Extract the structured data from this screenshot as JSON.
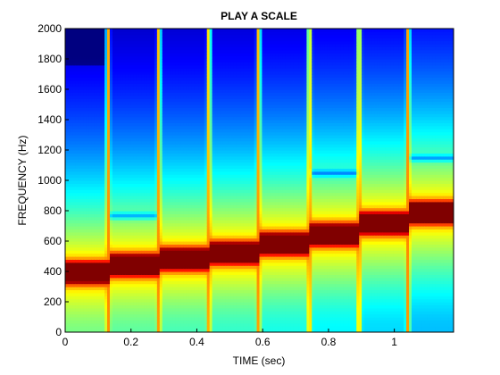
{
  "chart_data": {
    "type": "heatmap",
    "title": "PLAY A SCALE",
    "xlabel": "TIME (sec)",
    "ylabel": "FREQUENCY (Hz)",
    "xlim": [
      0,
      1.18
    ],
    "ylim": [
      0,
      2000
    ],
    "xticks": [
      0,
      0.2,
      0.4,
      0.6,
      0.8,
      1
    ],
    "yticks": [
      0,
      200,
      400,
      600,
      800,
      1000,
      1200,
      1400,
      1600,
      1800,
      2000
    ],
    "colormap": "jet",
    "colors": {
      "low": "#00008f",
      "mid": "#00ffff",
      "high": "#800000"
    },
    "notes_segments": [
      {
        "t_start": 0.0,
        "t_end": 0.125,
        "peak_hz": 395,
        "harmonic_hz": null
      },
      {
        "t_start": 0.14,
        "t_end": 0.28,
        "peak_hz": 445,
        "harmonic_hz": 770
      },
      {
        "t_start": 0.295,
        "t_end": 0.43,
        "peak_hz": 485,
        "harmonic_hz": null
      },
      {
        "t_start": 0.445,
        "t_end": 0.58,
        "peak_hz": 525,
        "harmonic_hz": null
      },
      {
        "t_start": 0.595,
        "t_end": 0.735,
        "peak_hz": 585,
        "harmonic_hz": null
      },
      {
        "t_start": 0.75,
        "t_end": 0.885,
        "peak_hz": 645,
        "harmonic_hz": 1050
      },
      {
        "t_start": 0.9,
        "t_end": 1.035,
        "peak_hz": 720,
        "harmonic_hz": null
      },
      {
        "t_start": 1.05,
        "t_end": 1.18,
        "peak_hz": 790,
        "harmonic_hz": 1150
      }
    ],
    "transients_sec": [
      0.13,
      0.285,
      0.437,
      0.588,
      0.742,
      0.893,
      1.042
    ],
    "grid": false
  }
}
